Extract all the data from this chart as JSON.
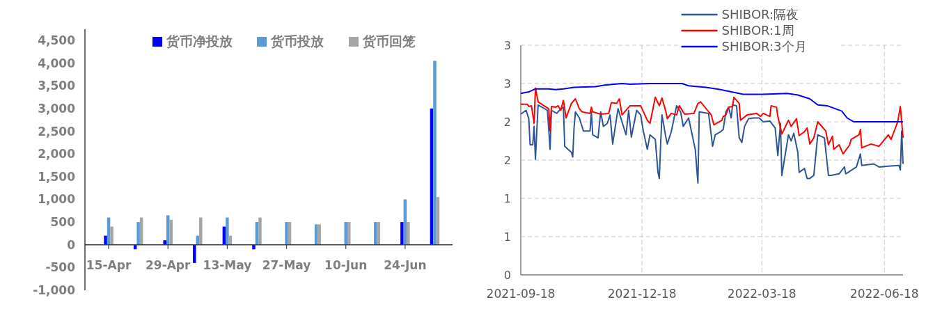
{
  "chart_data": [
    {
      "type": "bar",
      "categories": [
        "15-Apr",
        null,
        "29-Apr",
        null,
        "13-May",
        null,
        "27-May",
        null,
        "10-Jun",
        null,
        "24-Jun",
        null
      ],
      "ylim": [
        -1000,
        4500
      ],
      "yticks": [
        {
          "value": -1000,
          "label": "-1,000"
        },
        -500,
        0,
        500,
        {
          "value": 1000,
          "label": "1,000"
        },
        {
          "value": 1500,
          "label": "1,500"
        },
        {
          "value": 2000,
          "label": "2,000"
        },
        {
          "value": 2500,
          "label": "2,500"
        },
        {
          "value": 3000,
          "label": "3,000"
        },
        {
          "value": 3500,
          "label": "3,500"
        },
        {
          "value": 4000,
          "label": "4,000"
        },
        {
          "value": 4500,
          "label": "4,500"
        }
      ],
      "legend": "top",
      "series": [
        {
          "name": "货币净投放",
          "color": "#0000ff",
          "values": [
            200,
            -100,
            100,
            -400,
            400,
            -100,
            0,
            0,
            0,
            0,
            500,
            3000
          ]
        },
        {
          "name": "货币投放",
          "color": "#5b9bd5",
          "values": [
            600,
            500,
            650,
            200,
            600,
            500,
            500,
            450,
            500,
            500,
            1000,
            4050
          ]
        },
        {
          "name": "货币回笼",
          "color": "#a5a5a5",
          "values": [
            400,
            600,
            550,
            600,
            200,
            600,
            500,
            450,
            500,
            500,
            500,
            1050
          ]
        }
      ]
    },
    {
      "type": "line",
      "xlim": [
        "2021-09-18",
        "2022-07-02"
      ],
      "xticks": [
        "2021-09-18",
        "2021-12-18",
        "2022-03-18",
        "2022-06-18"
      ],
      "ylim": [
        0,
        3
      ],
      "yticks": [
        0,
        {
          "value": 0.5,
          "label": "1"
        },
        1,
        {
          "value": 1.5,
          "label": "2"
        },
        2,
        {
          "value": 2.5,
          "label": "3"
        },
        3
      ],
      "grid": true,
      "legend": "top right",
      "series": [
        {
          "name": "SHIBOR:隔夜",
          "color": "#2f5597",
          "x": [
            "2021-09-18",
            "2021-09-22",
            "2021-09-24",
            "2021-09-25",
            "2021-09-27",
            "2021-09-28",
            "2021-09-29",
            "2021-10-01",
            "2021-10-08",
            "2021-10-10",
            "2021-10-11",
            "2021-10-15",
            "2021-10-18",
            "2021-10-20",
            "2021-10-21",
            "2021-10-26",
            "2021-10-27",
            "2021-10-28",
            "2021-10-29",
            "2021-11-01",
            "2021-11-04",
            "2021-11-09",
            "2021-11-10",
            "2021-11-11",
            "2021-11-15",
            "2021-11-17",
            "2021-11-19",
            "2021-11-22",
            "2021-11-24",
            "2021-11-26",
            "2021-11-30",
            "2021-12-06",
            "2021-12-08",
            "2021-12-10",
            "2021-12-14",
            "2021-12-17",
            "2021-12-19",
            "2021-12-22",
            "2021-12-24",
            "2021-12-28",
            "2021-12-30",
            "2021-12-31",
            "2022-01-01",
            "2022-01-02",
            "2022-01-05",
            "2022-01-06",
            "2022-01-09",
            "2022-01-13",
            "2022-01-16",
            "2022-01-18",
            "2022-01-22",
            "2022-01-27",
            "2022-01-29",
            "2022-01-30",
            "2022-02-06",
            "2022-02-09",
            "2022-02-11",
            "2022-02-15",
            "2022-02-17",
            "2022-02-19",
            "2022-02-21",
            "2022-02-23",
            "2022-02-24",
            "2022-02-27",
            "2022-03-01",
            "2022-03-03",
            "2022-03-05",
            "2022-03-08",
            "2022-03-12",
            "2022-03-16",
            "2022-03-19",
            "2022-03-24",
            "2022-03-28",
            "2022-03-30",
            "2022-04-01",
            "2022-04-02",
            "2022-04-07",
            "2022-04-09",
            "2022-04-11",
            "2022-04-14",
            "2022-04-15",
            "2022-04-19",
            "2022-04-21",
            "2022-04-23",
            "2022-04-26",
            "2022-04-29",
            "2022-05-04",
            "2022-05-07",
            "2022-05-09",
            "2022-05-15",
            "2022-05-19",
            "2022-05-20",
            "2022-05-28",
            "2022-05-31",
            "2022-06-01",
            "2022-06-10",
            "2022-06-14",
            "2022-06-21",
            "2022-06-29",
            "2022-06-30",
            "2022-07-01",
            "2022-07-02"
          ],
          "values": [
            2.1,
            2.15,
            2.04,
            1.7,
            1.7,
            1.94,
            1.51,
            2.22,
            2.15,
            1.64,
            2.15,
            2.11,
            2.17,
            2.19,
            1.68,
            1.6,
            1.54,
            1.92,
            2.13,
            2.05,
            1.88,
            1.88,
            2.13,
            1.83,
            1.79,
            2.13,
            1.94,
            1.98,
            2.09,
            1.71,
            2.17,
            1.83,
            2.15,
            1.8,
            2.15,
            2.09,
            1.88,
            1.64,
            1.83,
            1.77,
            1.34,
            1.26,
            1.7,
            2.09,
            1.79,
            1.71,
            1.87,
            2.21,
            2.13,
            1.94,
            2.05,
            1.64,
            1.2,
            2.13,
            2.11,
            1.68,
            1.83,
            1.87,
            1.9,
            2.13,
            2.19,
            2.05,
            2.22,
            2.21,
            1.79,
            1.73,
            1.94,
            2.04,
            2.05,
            2.05,
            2.0,
            2.01,
            1.92,
            1.56,
            1.98,
            1.3,
            1.83,
            1.75,
            1.85,
            1.6,
            1.34,
            1.39,
            1.26,
            1.26,
            1.3,
            1.83,
            1.79,
            1.3,
            1.3,
            1.32,
            1.41,
            1.32,
            1.41,
            1.58,
            1.43,
            1.45,
            1.41,
            1.42,
            1.43,
            1.37,
            1.88,
            1.45
          ]
        },
        {
          "name": "SHIBOR:1周",
          "color": "#ff0000",
          "x": [
            "2021-09-18",
            "2021-09-23",
            "2021-09-24",
            "2021-09-26",
            "2021-09-28",
            "2021-09-29",
            "2021-10-01",
            "2021-10-09",
            "2021-10-10",
            "2021-10-11",
            "2021-10-14",
            "2021-10-16",
            "2021-10-18",
            "2021-10-20",
            "2021-10-22",
            "2021-10-26",
            "2021-10-29",
            "2021-11-01",
            "2021-11-03",
            "2021-11-09",
            "2021-11-10",
            "2021-11-11",
            "2021-11-17",
            "2021-11-23",
            "2021-11-25",
            "2021-11-29",
            "2021-12-01",
            "2021-12-03",
            "2021-12-09",
            "2021-12-17",
            "2021-12-22",
            "2021-12-24",
            "2021-12-28",
            "2021-12-31",
            "2022-01-02",
            "2022-01-05",
            "2022-01-06",
            "2022-01-09",
            "2022-01-13",
            "2022-01-15",
            "2022-01-19",
            "2022-01-26",
            "2022-01-29",
            "2022-01-31",
            "2022-02-08",
            "2022-02-10",
            "2022-02-16",
            "2022-02-17",
            "2022-02-19",
            "2022-02-21",
            "2022-02-24",
            "2022-02-25",
            "2022-03-01",
            "2022-03-02",
            "2022-03-07",
            "2022-03-14",
            "2022-03-17",
            "2022-03-19",
            "2022-03-24",
            "2022-03-25",
            "2022-03-29",
            "2022-03-30",
            "2022-04-02",
            "2022-04-07",
            "2022-04-09",
            "2022-04-13",
            "2022-04-15",
            "2022-04-19",
            "2022-04-21",
            "2022-04-23",
            "2022-04-26",
            "2022-04-29",
            "2022-05-05",
            "2022-05-07",
            "2022-05-10",
            "2022-05-11",
            "2022-05-15",
            "2022-05-18",
            "2022-05-23",
            "2022-05-24",
            "2022-05-30",
            "2022-05-31",
            "2022-06-01",
            "2022-06-08",
            "2022-06-14",
            "2022-06-21",
            "2022-06-23",
            "2022-06-28",
            "2022-06-30",
            "2022-07-02"
          ],
          "values": [
            2.23,
            2.23,
            2.2,
            2.21,
            1.98,
            2.44,
            2.26,
            2.17,
            1.88,
            2.2,
            2.19,
            2.21,
            2.15,
            2.28,
            2.05,
            2.24,
            2.3,
            2.17,
            2.13,
            2.11,
            2.19,
            2.13,
            2.1,
            2.11,
            2.25,
            2.24,
            2.3,
            2.09,
            2.21,
            2.21,
            2.02,
            1.98,
            2.32,
            2.21,
            2.31,
            2.13,
            2.04,
            2.11,
            2.09,
            2.21,
            2.1,
            2.11,
            2.24,
            2.26,
            2.09,
            1.96,
            2.02,
            2.07,
            2.09,
            2.19,
            2.2,
            2.32,
            2.24,
            2.02,
            2.09,
            2.11,
            2.07,
            2.11,
            2.07,
            2.21,
            2.19,
            2.07,
            1.84,
            2.02,
            1.94,
            2.04,
            1.82,
            1.87,
            1.92,
            1.71,
            1.79,
            2.0,
            1.88,
            1.7,
            1.81,
            1.64,
            1.7,
            1.58,
            1.7,
            1.77,
            1.83,
            1.9,
            1.66,
            1.71,
            1.68,
            1.83,
            1.77,
            2.0,
            2.2,
            1.79
          ]
        },
        {
          "name": "SHIBOR:3个月",
          "color": "#0000ff",
          "x": [
            "2021-09-18",
            "2021-09-24",
            "2021-09-29",
            "2021-10-09",
            "2021-10-14",
            "2021-10-20",
            "2021-10-28",
            "2021-11-13",
            "2021-11-20",
            "2021-12-03",
            "2021-12-09",
            "2021-12-24",
            "2022-01-17",
            "2022-01-22",
            "2022-02-04",
            "2022-02-15",
            "2022-03-04",
            "2022-03-15",
            "2022-03-19",
            "2022-04-06",
            "2022-04-14",
            "2022-04-23",
            "2022-04-29",
            "2022-05-06",
            "2022-05-17",
            "2022-05-21",
            "2022-05-26",
            "2022-06-10",
            "2022-07-02"
          ],
          "values": [
            2.37,
            2.39,
            2.43,
            2.43,
            2.42,
            2.43,
            2.45,
            2.46,
            2.48,
            2.5,
            2.49,
            2.5,
            2.5,
            2.47,
            2.45,
            2.42,
            2.36,
            2.36,
            2.36,
            2.37,
            2.35,
            2.3,
            2.22,
            2.21,
            2.14,
            2.05,
            2.0,
            2.0,
            2.0
          ]
        }
      ]
    }
  ]
}
